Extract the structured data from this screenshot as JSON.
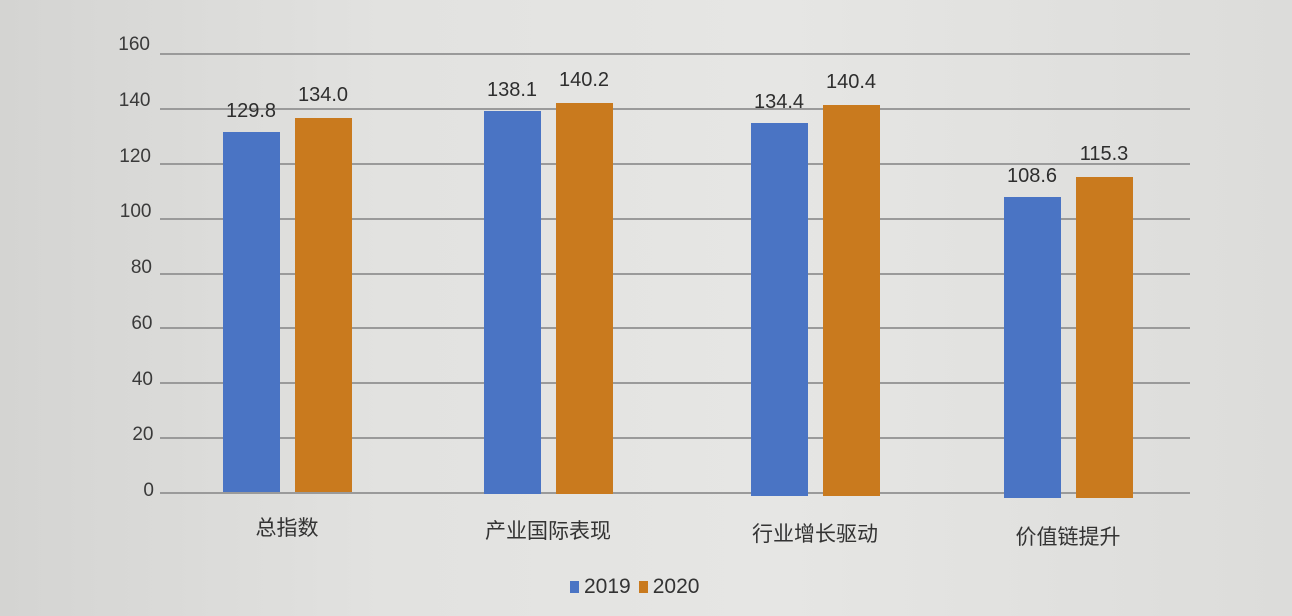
{
  "chart_data": {
    "type": "bar",
    "title": "",
    "xlabel": "",
    "ylabel": "",
    "ylim": [
      0,
      160
    ],
    "yticks": [
      0,
      20,
      40,
      60,
      80,
      100,
      120,
      140,
      160
    ],
    "grid": true,
    "legend_position": "bottom",
    "categories": [
      "总指数",
      "产业国际表现",
      "行业增长驱动",
      "价值链提升"
    ],
    "series": [
      {
        "name": "2019",
        "color": "#4a74c4",
        "values": [
          129.8,
          138.1,
          134.4,
          108.6
        ]
      },
      {
        "name": "2020",
        "color": "#c97a1e",
        "values": [
          134.0,
          140.2,
          140.4,
          115.3
        ]
      }
    ],
    "value_labels": [
      [
        "129.8",
        "138.1",
        "134.4",
        "108.6"
      ],
      [
        "134.0",
        "140.2",
        "140.4",
        "115.3"
      ]
    ]
  },
  "legend": {
    "items": [
      {
        "label": "2019",
        "color": "#4a74c4"
      },
      {
        "label": "2020",
        "color": "#c97a1e"
      }
    ]
  }
}
